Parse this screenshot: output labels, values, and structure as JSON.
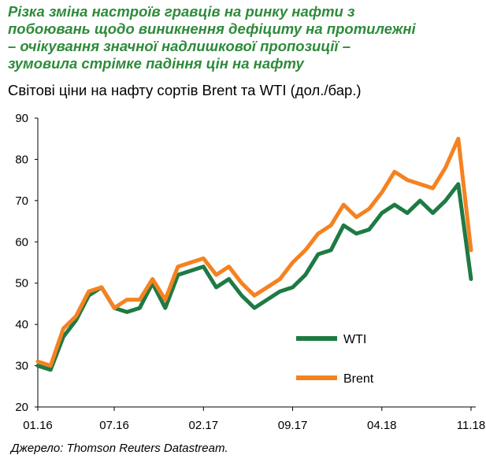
{
  "header": {
    "title_lines": [
      "Різка зміна настроїв гравців на ринку нафти з",
      "побоювань щодо виникнення дефіциту на протилежні",
      "– очікування значної надлишкової пропозиції –",
      "зумовила стрімке падіння цін на нафту"
    ],
    "subtitle": "Світові ціни на нафту сортів Brent та WTI (дол./бар.)"
  },
  "footer": {
    "source": "Джерело: Thomson Reuters Datastream."
  },
  "colors": {
    "wti": "#1e7a43",
    "brent": "#f58220",
    "title": "#2e8b3a"
  },
  "chart_data": {
    "type": "line",
    "title": "Світові ціни на нафту сортів Brent та WTI (дол./бар.)",
    "ylim": [
      20,
      90
    ],
    "yticks": [
      "20",
      "30",
      "40",
      "50",
      "60",
      "70",
      "80",
      "90"
    ],
    "xticks": [
      "01.16",
      "07.16",
      "02.17",
      "09.17",
      "04.18",
      "11.18"
    ],
    "x": [
      "01.16",
      "02.16",
      "03.16",
      "04.16",
      "05.16",
      "06.16",
      "07.16",
      "08.16",
      "09.16",
      "10.16",
      "11.16",
      "12.16",
      "01.17",
      "02.17",
      "03.17",
      "04.17",
      "05.17",
      "06.17",
      "07.17",
      "08.17",
      "09.17",
      "10.17",
      "11.17",
      "12.17",
      "01.18",
      "02.18",
      "03.18",
      "04.18",
      "05.18",
      "06.18",
      "07.18",
      "08.18",
      "09.18",
      "10.18",
      "11.18"
    ],
    "legend": {
      "position": "right-lower"
    },
    "grid": false,
    "series": [
      {
        "name": "WTI",
        "values": [
          30,
          29,
          37,
          41,
          47,
          49,
          44,
          43,
          44,
          50,
          44,
          52,
          53,
          54,
          49,
          51,
          47,
          44,
          46,
          48,
          49,
          52,
          57,
          58,
          64,
          62,
          63,
          67,
          69,
          67,
          70,
          67,
          70,
          74,
          51
        ]
      },
      {
        "name": "Brent",
        "values": [
          31,
          30,
          39,
          42,
          48,
          49,
          44,
          46,
          46,
          51,
          46,
          54,
          55,
          56,
          52,
          54,
          50,
          47,
          49,
          51,
          55,
          58,
          62,
          64,
          69,
          66,
          68,
          72,
          77,
          75,
          74,
          73,
          78,
          85,
          58
        ]
      }
    ]
  }
}
